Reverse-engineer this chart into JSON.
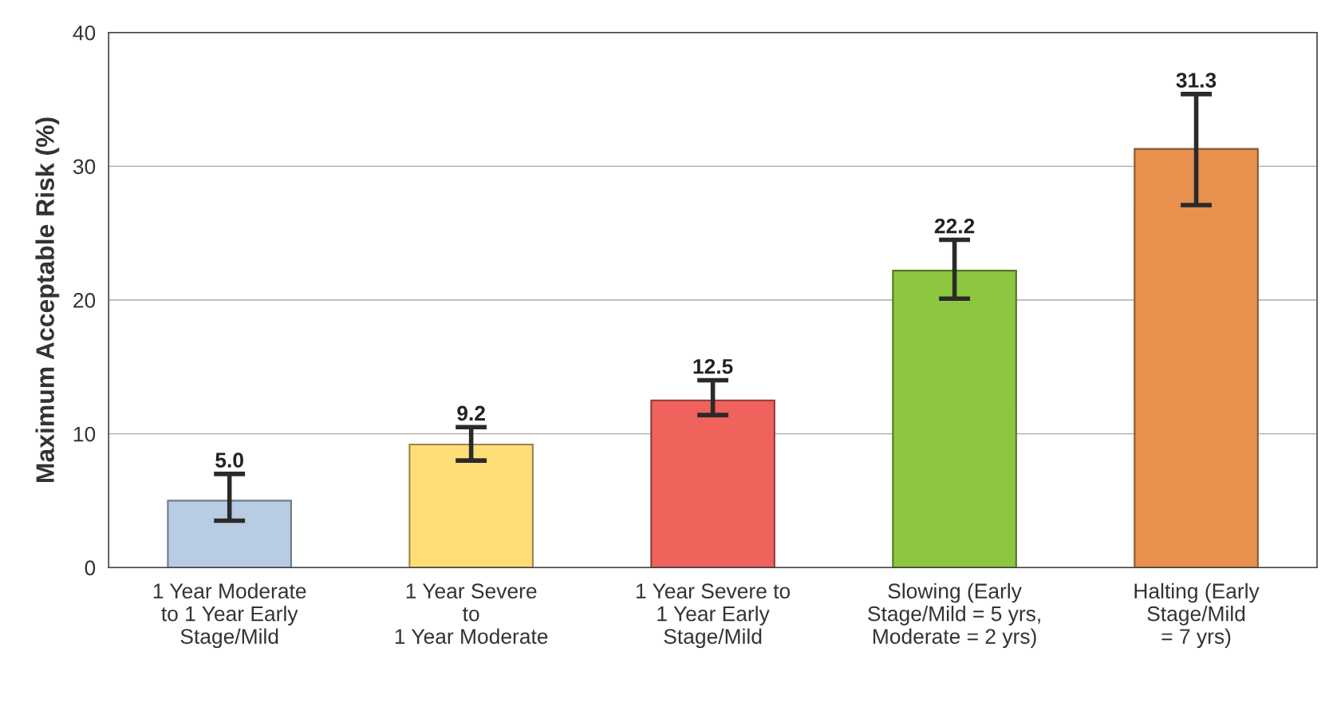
{
  "chart_data": {
    "type": "bar",
    "ylabel": "Maximum Acceptable Risk (%)",
    "categories": [
      "1 Year Moderate\nto 1 Year Early\nStage/Mild",
      "1 Year Severe\nto\n1 Year Moderate",
      "1 Year Severe to\n1 Year Early\nStage/Mild",
      "Slowing (Early\nStage/Mild = 5 yrs,\nModerate = 2 yrs)",
      "Halting (Early\nStage/Mild\n= 7 yrs)"
    ],
    "values": [
      5.0,
      9.2,
      12.5,
      22.2,
      31.3
    ],
    "value_labels": [
      "5.0",
      "9.2",
      "12.5",
      "22.2",
      "31.3"
    ],
    "errors": [
      [
        3.5,
        7.0
      ],
      [
        8.0,
        10.5
      ],
      [
        11.4,
        14.0
      ],
      [
        20.1,
        24.5
      ],
      [
        27.1,
        35.4
      ]
    ],
    "colors": [
      "#b8cce4",
      "#ffdd77",
      "#f0625c",
      "#8dc63f",
      "#e8914f"
    ],
    "ylim": [
      0,
      40
    ],
    "yticks": [
      0,
      10,
      20,
      30,
      40
    ],
    "grid": "y"
  }
}
